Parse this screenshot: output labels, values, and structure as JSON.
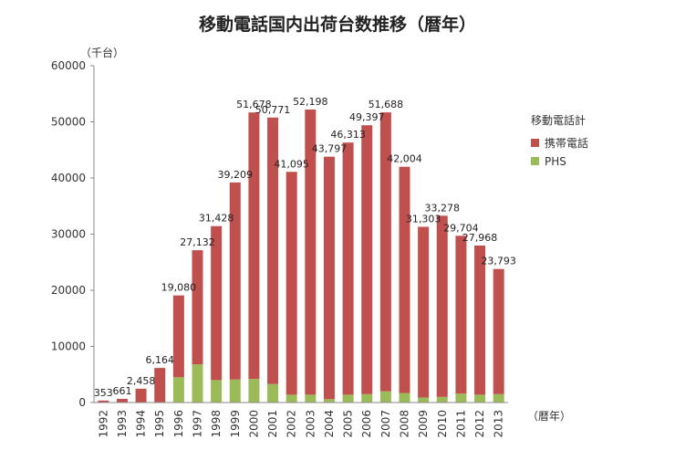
{
  "chart_data": {
    "type": "bar",
    "stacked": true,
    "title": "移動電話国内出荷台数推移（暦年）",
    "ylabel": "（千台）",
    "xlabel": "（暦年）",
    "ylim": [
      0,
      60000
    ],
    "yticks": [
      0,
      10000,
      20000,
      30000,
      40000,
      50000,
      60000
    ],
    "grid": false,
    "legend": {
      "title": "移動電話計",
      "placement": "right"
    },
    "categories": [
      "1992",
      "1993",
      "1994",
      "1995",
      "1996",
      "1997",
      "1998",
      "1999",
      "2000",
      "2001",
      "2002",
      "2003",
      "2004",
      "2005",
      "2006",
      "2007",
      "2008",
      "2009",
      "2010",
      "2011",
      "2012",
      "2013"
    ],
    "totals": [
      353,
      661,
      2458,
      6164,
      19080,
      27132,
      31428,
      39209,
      51678,
      50771,
      41095,
      52198,
      43797,
      46313,
      49397,
      51688,
      42004,
      31303,
      33278,
      29704,
      27968,
      23793
    ],
    "total_labels": [
      "353",
      "661",
      "2,458",
      "6,164",
      "19,080",
      "27,132",
      "31,428",
      "39,209",
      "51,678",
      "50,771",
      "41,095",
      "52,198",
      "43,797",
      "46,313",
      "49,397",
      "51,688",
      "42,004",
      "31,303",
      "33,278",
      "29,704",
      "27,968",
      "23,793"
    ],
    "series": [
      {
        "name": "PHS",
        "color": "#9bbb59",
        "values": [
          0,
          0,
          0,
          0,
          4500,
          6800,
          4000,
          4100,
          4200,
          3300,
          1400,
          1400,
          600,
          1400,
          1500,
          2000,
          1700,
          900,
          1000,
          1600,
          1400,
          1500
        ]
      },
      {
        "name": "携帯電話",
        "color": "#c0504d",
        "values": [
          353,
          661,
          2458,
          6164,
          14580,
          20332,
          27428,
          35109,
          47478,
          47471,
          39695,
          50798,
          43197,
          44913,
          47897,
          49688,
          40304,
          30403,
          32278,
          28104,
          26568,
          22293
        ]
      }
    ]
  }
}
